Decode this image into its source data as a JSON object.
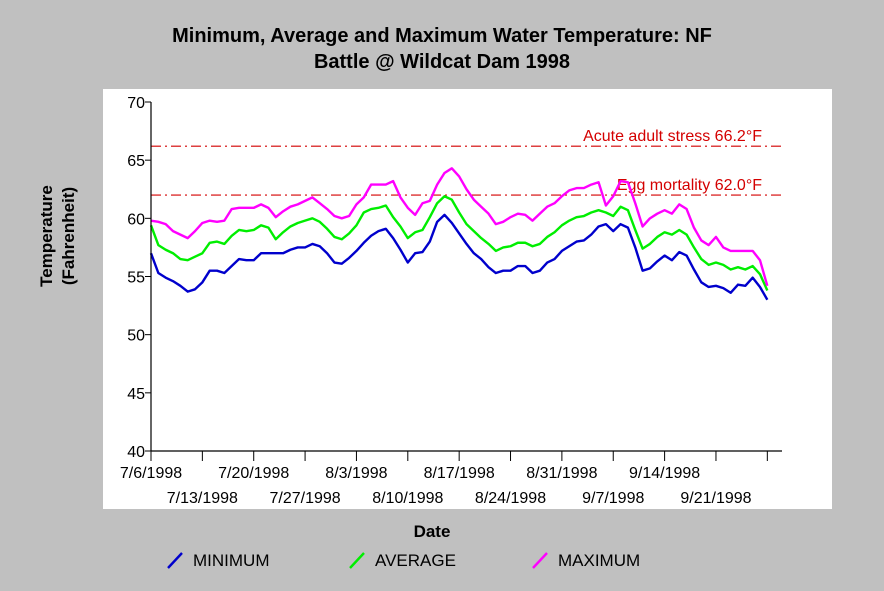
{
  "chart_data": {
    "type": "line",
    "title_line1": "Minimum, Average and Maximum Water Temperature: NF",
    "title_line2": "Battle @ Wildcat Dam 1998",
    "xlabel": "Date",
    "ylabel_line1": "Temperature",
    "ylabel_line2": "(Fahrenheit)",
    "ylim": [
      40,
      70
    ],
    "yticks": [
      40,
      45,
      50,
      55,
      60,
      65,
      70
    ],
    "xlim": [
      "1998-07-06",
      "1998-09-30"
    ],
    "xticks": [
      {
        "date": "1998-07-06",
        "label": "7/6/1998",
        "row": 1
      },
      {
        "date": "1998-07-13",
        "label": "7/13/1998",
        "row": 2
      },
      {
        "date": "1998-07-20",
        "label": "7/20/1998",
        "row": 1
      },
      {
        "date": "1998-07-27",
        "label": "7/27/1998",
        "row": 2
      },
      {
        "date": "1998-08-03",
        "label": "8/3/1998",
        "row": 1
      },
      {
        "date": "1998-08-10",
        "label": "8/10/1998",
        "row": 2
      },
      {
        "date": "1998-08-17",
        "label": "8/17/1998",
        "row": 1
      },
      {
        "date": "1998-08-24",
        "label": "8/24/1998",
        "row": 2
      },
      {
        "date": "1998-08-31",
        "label": "8/31/1998",
        "row": 1
      },
      {
        "date": "1998-09-07",
        "label": "9/7/1998",
        "row": 2
      },
      {
        "date": "1998-09-14",
        "label": "9/14/1998",
        "row": 1
      },
      {
        "date": "1998-09-21",
        "label": "9/21/1998",
        "row": 2
      },
      {
        "date": "1998-09-28",
        "label": "",
        "row": 1
      }
    ],
    "reference_lines": [
      {
        "value": 66.2,
        "label": "Acute adult stress 66.2°F",
        "color": "#d40000"
      },
      {
        "value": 62.0,
        "label": "Egg mortality 62.0°F",
        "color": "#d40000"
      }
    ],
    "legend_position": "bottom",
    "grid": false,
    "series": [
      {
        "name": "MINIMUM",
        "color": "#0000cc",
        "points": [
          [
            "1998-07-06",
            57.0
          ],
          [
            "1998-07-07",
            55.3
          ],
          [
            "1998-07-08",
            54.9
          ],
          [
            "1998-07-09",
            54.6
          ],
          [
            "1998-07-10",
            54.2
          ],
          [
            "1998-07-11",
            53.7
          ],
          [
            "1998-07-12",
            53.9
          ],
          [
            "1998-07-13",
            54.5
          ],
          [
            "1998-07-14",
            55.5
          ],
          [
            "1998-07-15",
            55.5
          ],
          [
            "1998-07-16",
            55.3
          ],
          [
            "1998-07-17",
            55.9
          ],
          [
            "1998-07-18",
            56.5
          ],
          [
            "1998-07-19",
            56.4
          ],
          [
            "1998-07-20",
            56.4
          ],
          [
            "1998-07-21",
            57.0
          ],
          [
            "1998-07-22",
            57.0
          ],
          [
            "1998-07-23",
            57.0
          ],
          [
            "1998-07-24",
            57.0
          ],
          [
            "1998-07-25",
            57.3
          ],
          [
            "1998-07-26",
            57.5
          ],
          [
            "1998-07-27",
            57.5
          ],
          [
            "1998-07-28",
            57.8
          ],
          [
            "1998-07-29",
            57.6
          ],
          [
            "1998-07-30",
            57.0
          ],
          [
            "1998-07-31",
            56.2
          ],
          [
            "1998-08-01",
            56.1
          ],
          [
            "1998-08-02",
            56.6
          ],
          [
            "1998-08-03",
            57.2
          ],
          [
            "1998-08-04",
            57.9
          ],
          [
            "1998-08-05",
            58.5
          ],
          [
            "1998-08-06",
            58.9
          ],
          [
            "1998-08-07",
            59.1
          ],
          [
            "1998-08-08",
            58.3
          ],
          [
            "1998-08-09",
            57.3
          ],
          [
            "1998-08-10",
            56.2
          ],
          [
            "1998-08-11",
            57.0
          ],
          [
            "1998-08-12",
            57.1
          ],
          [
            "1998-08-13",
            58.0
          ],
          [
            "1998-08-14",
            59.7
          ],
          [
            "1998-08-15",
            60.3
          ],
          [
            "1998-08-16",
            59.6
          ],
          [
            "1998-08-17",
            58.7
          ],
          [
            "1998-08-18",
            57.8
          ],
          [
            "1998-08-19",
            57.0
          ],
          [
            "1998-08-20",
            56.5
          ],
          [
            "1998-08-21",
            55.8
          ],
          [
            "1998-08-22",
            55.3
          ],
          [
            "1998-08-23",
            55.5
          ],
          [
            "1998-08-24",
            55.5
          ],
          [
            "1998-08-25",
            55.9
          ],
          [
            "1998-08-26",
            55.9
          ],
          [
            "1998-08-27",
            55.3
          ],
          [
            "1998-08-28",
            55.5
          ],
          [
            "1998-08-29",
            56.2
          ],
          [
            "1998-08-30",
            56.5
          ],
          [
            "1998-08-31",
            57.2
          ],
          [
            "1998-09-01",
            57.6
          ],
          [
            "1998-09-02",
            58.0
          ],
          [
            "1998-09-03",
            58.1
          ],
          [
            "1998-09-04",
            58.6
          ],
          [
            "1998-09-05",
            59.3
          ],
          [
            "1998-09-06",
            59.5
          ],
          [
            "1998-09-07",
            58.9
          ],
          [
            "1998-09-08",
            59.5
          ],
          [
            "1998-09-09",
            59.2
          ],
          [
            "1998-09-10",
            57.5
          ],
          [
            "1998-09-11",
            55.5
          ],
          [
            "1998-09-12",
            55.7
          ],
          [
            "1998-09-13",
            56.3
          ],
          [
            "1998-09-14",
            56.8
          ],
          [
            "1998-09-15",
            56.4
          ],
          [
            "1998-09-16",
            57.1
          ],
          [
            "1998-09-17",
            56.8
          ],
          [
            "1998-09-18",
            55.6
          ],
          [
            "1998-09-19",
            54.5
          ],
          [
            "1998-09-20",
            54.1
          ],
          [
            "1998-09-21",
            54.2
          ],
          [
            "1998-09-22",
            54.0
          ],
          [
            "1998-09-23",
            53.6
          ],
          [
            "1998-09-24",
            54.3
          ],
          [
            "1998-09-25",
            54.2
          ],
          [
            "1998-09-26",
            54.9
          ],
          [
            "1998-09-27",
            54.1
          ],
          [
            "1998-09-28",
            53.0
          ]
        ]
      },
      {
        "name": "AVERAGE",
        "color": "#00ee00",
        "points": [
          [
            "1998-07-06",
            59.4
          ],
          [
            "1998-07-07",
            57.7
          ],
          [
            "1998-07-08",
            57.3
          ],
          [
            "1998-07-09",
            57.0
          ],
          [
            "1998-07-10",
            56.5
          ],
          [
            "1998-07-11",
            56.4
          ],
          [
            "1998-07-12",
            56.7
          ],
          [
            "1998-07-13",
            57.0
          ],
          [
            "1998-07-14",
            57.9
          ],
          [
            "1998-07-15",
            58.0
          ],
          [
            "1998-07-16",
            57.8
          ],
          [
            "1998-07-17",
            58.5
          ],
          [
            "1998-07-18",
            59.0
          ],
          [
            "1998-07-19",
            58.9
          ],
          [
            "1998-07-20",
            59.0
          ],
          [
            "1998-07-21",
            59.4
          ],
          [
            "1998-07-22",
            59.2
          ],
          [
            "1998-07-23",
            58.2
          ],
          [
            "1998-07-24",
            58.8
          ],
          [
            "1998-07-25",
            59.3
          ],
          [
            "1998-07-26",
            59.6
          ],
          [
            "1998-07-27",
            59.8
          ],
          [
            "1998-07-28",
            60.0
          ],
          [
            "1998-07-29",
            59.7
          ],
          [
            "1998-07-30",
            59.1
          ],
          [
            "1998-07-31",
            58.4
          ],
          [
            "1998-08-01",
            58.2
          ],
          [
            "1998-08-02",
            58.7
          ],
          [
            "1998-08-03",
            59.4
          ],
          [
            "1998-08-04",
            60.5
          ],
          [
            "1998-08-05",
            60.8
          ],
          [
            "1998-08-06",
            60.9
          ],
          [
            "1998-08-07",
            61.1
          ],
          [
            "1998-08-08",
            60.1
          ],
          [
            "1998-08-09",
            59.3
          ],
          [
            "1998-08-10",
            58.3
          ],
          [
            "1998-08-11",
            58.8
          ],
          [
            "1998-08-12",
            59.0
          ],
          [
            "1998-08-13",
            60.1
          ],
          [
            "1998-08-14",
            61.3
          ],
          [
            "1998-08-15",
            61.9
          ],
          [
            "1998-08-16",
            61.6
          ],
          [
            "1998-08-17",
            60.5
          ],
          [
            "1998-08-18",
            59.5
          ],
          [
            "1998-08-19",
            58.9
          ],
          [
            "1998-08-20",
            58.3
          ],
          [
            "1998-08-21",
            57.8
          ],
          [
            "1998-08-22",
            57.2
          ],
          [
            "1998-08-23",
            57.5
          ],
          [
            "1998-08-24",
            57.6
          ],
          [
            "1998-08-25",
            57.9
          ],
          [
            "1998-08-26",
            57.9
          ],
          [
            "1998-08-27",
            57.6
          ],
          [
            "1998-08-28",
            57.8
          ],
          [
            "1998-08-29",
            58.4
          ],
          [
            "1998-08-30",
            58.8
          ],
          [
            "1998-08-31",
            59.4
          ],
          [
            "1998-09-01",
            59.8
          ],
          [
            "1998-09-02",
            60.1
          ],
          [
            "1998-09-03",
            60.2
          ],
          [
            "1998-09-04",
            60.5
          ],
          [
            "1998-09-05",
            60.7
          ],
          [
            "1998-09-06",
            60.5
          ],
          [
            "1998-09-07",
            60.2
          ],
          [
            "1998-09-08",
            61.0
          ],
          [
            "1998-09-09",
            60.7
          ],
          [
            "1998-09-10",
            59.0
          ],
          [
            "1998-09-11",
            57.4
          ],
          [
            "1998-09-12",
            57.8
          ],
          [
            "1998-09-13",
            58.4
          ],
          [
            "1998-09-14",
            58.8
          ],
          [
            "1998-09-15",
            58.6
          ],
          [
            "1998-09-16",
            59.0
          ],
          [
            "1998-09-17",
            58.6
          ],
          [
            "1998-09-18",
            57.5
          ],
          [
            "1998-09-19",
            56.5
          ],
          [
            "1998-09-20",
            56.0
          ],
          [
            "1998-09-21",
            56.2
          ],
          [
            "1998-09-22",
            56.0
          ],
          [
            "1998-09-23",
            55.6
          ],
          [
            "1998-09-24",
            55.8
          ],
          [
            "1998-09-25",
            55.6
          ],
          [
            "1998-09-26",
            55.9
          ],
          [
            "1998-09-27",
            55.2
          ],
          [
            "1998-09-28",
            53.8
          ]
        ]
      },
      {
        "name": "MAXIMUM",
        "color": "#ff00ff",
        "points": [
          [
            "1998-07-06",
            59.8
          ],
          [
            "1998-07-07",
            59.7
          ],
          [
            "1998-07-08",
            59.5
          ],
          [
            "1998-07-09",
            58.9
          ],
          [
            "1998-07-10",
            58.6
          ],
          [
            "1998-07-11",
            58.3
          ],
          [
            "1998-07-12",
            58.9
          ],
          [
            "1998-07-13",
            59.6
          ],
          [
            "1998-07-14",
            59.8
          ],
          [
            "1998-07-15",
            59.7
          ],
          [
            "1998-07-16",
            59.8
          ],
          [
            "1998-07-17",
            60.8
          ],
          [
            "1998-07-18",
            60.9
          ],
          [
            "1998-07-19",
            60.9
          ],
          [
            "1998-07-20",
            60.9
          ],
          [
            "1998-07-21",
            61.2
          ],
          [
            "1998-07-22",
            60.9
          ],
          [
            "1998-07-23",
            60.1
          ],
          [
            "1998-07-24",
            60.6
          ],
          [
            "1998-07-25",
            61.0
          ],
          [
            "1998-07-26",
            61.2
          ],
          [
            "1998-07-27",
            61.5
          ],
          [
            "1998-07-28",
            61.8
          ],
          [
            "1998-07-29",
            61.3
          ],
          [
            "1998-07-30",
            60.8
          ],
          [
            "1998-07-31",
            60.2
          ],
          [
            "1998-08-01",
            60.0
          ],
          [
            "1998-08-02",
            60.2
          ],
          [
            "1998-08-03",
            61.2
          ],
          [
            "1998-08-04",
            61.8
          ],
          [
            "1998-08-05",
            62.9
          ],
          [
            "1998-08-06",
            62.9
          ],
          [
            "1998-08-07",
            62.9
          ],
          [
            "1998-08-08",
            63.2
          ],
          [
            "1998-08-09",
            61.8
          ],
          [
            "1998-08-10",
            60.9
          ],
          [
            "1998-08-11",
            60.3
          ],
          [
            "1998-08-12",
            61.3
          ],
          [
            "1998-08-13",
            61.5
          ],
          [
            "1998-08-14",
            62.9
          ],
          [
            "1998-08-15",
            63.9
          ],
          [
            "1998-08-16",
            64.3
          ],
          [
            "1998-08-17",
            63.6
          ],
          [
            "1998-08-18",
            62.5
          ],
          [
            "1998-08-19",
            61.6
          ],
          [
            "1998-08-20",
            61.0
          ],
          [
            "1998-08-21",
            60.4
          ],
          [
            "1998-08-22",
            59.5
          ],
          [
            "1998-08-23",
            59.7
          ],
          [
            "1998-08-24",
            60.1
          ],
          [
            "1998-08-25",
            60.4
          ],
          [
            "1998-08-26",
            60.3
          ],
          [
            "1998-08-27",
            59.8
          ],
          [
            "1998-08-28",
            60.4
          ],
          [
            "1998-08-29",
            61.0
          ],
          [
            "1998-08-30",
            61.3
          ],
          [
            "1998-08-31",
            61.9
          ],
          [
            "1998-09-01",
            62.4
          ],
          [
            "1998-09-02",
            62.6
          ],
          [
            "1998-09-03",
            62.6
          ],
          [
            "1998-09-04",
            62.9
          ],
          [
            "1998-09-05",
            63.1
          ],
          [
            "1998-09-06",
            61.1
          ],
          [
            "1998-09-07",
            61.9
          ],
          [
            "1998-09-08",
            63.2
          ],
          [
            "1998-09-09",
            63.1
          ],
          [
            "1998-09-10",
            61.3
          ],
          [
            "1998-09-11",
            59.3
          ],
          [
            "1998-09-12",
            60.0
          ],
          [
            "1998-09-13",
            60.4
          ],
          [
            "1998-09-14",
            60.7
          ],
          [
            "1998-09-15",
            60.4
          ],
          [
            "1998-09-16",
            61.2
          ],
          [
            "1998-09-17",
            60.8
          ],
          [
            "1998-09-18",
            59.2
          ],
          [
            "1998-09-19",
            58.1
          ],
          [
            "1998-09-20",
            57.7
          ],
          [
            "1998-09-21",
            58.4
          ],
          [
            "1998-09-22",
            57.5
          ],
          [
            "1998-09-23",
            57.2
          ],
          [
            "1998-09-24",
            57.2
          ],
          [
            "1998-09-25",
            57.2
          ],
          [
            "1998-09-26",
            57.2
          ],
          [
            "1998-09-27",
            56.4
          ],
          [
            "1998-09-28",
            54.2
          ]
        ]
      }
    ]
  }
}
